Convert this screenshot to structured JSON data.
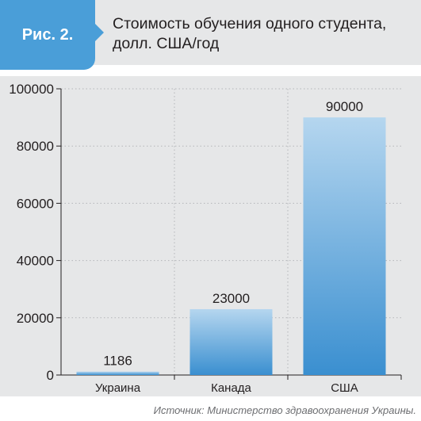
{
  "figure_label": "Рис. 2.",
  "title_line1": "Стоимость обучения одного студента,",
  "title_line2": "долл. США/год",
  "source": "Источник: Министерство здравоохранения Украины.",
  "colors": {
    "tag_blue": "#4a9ed8",
    "bar_top": "#b5d6ef",
    "bar_bottom": "#3a8fd0",
    "panel_gray": "#e6e7e8"
  },
  "chart_data": {
    "type": "bar",
    "categories": [
      "Украина",
      "Канада",
      "США"
    ],
    "values": [
      1186,
      23000,
      90000
    ],
    "value_labels": [
      "1186",
      "23000",
      "90000"
    ],
    "ylim": [
      0,
      100000
    ],
    "yticks": [
      0,
      20000,
      40000,
      60000,
      80000,
      100000
    ],
    "ytick_labels": [
      "0",
      "20000",
      "40000",
      "60000",
      "80000",
      "100000"
    ],
    "grid": true,
    "xlabel": "",
    "ylabel": ""
  }
}
